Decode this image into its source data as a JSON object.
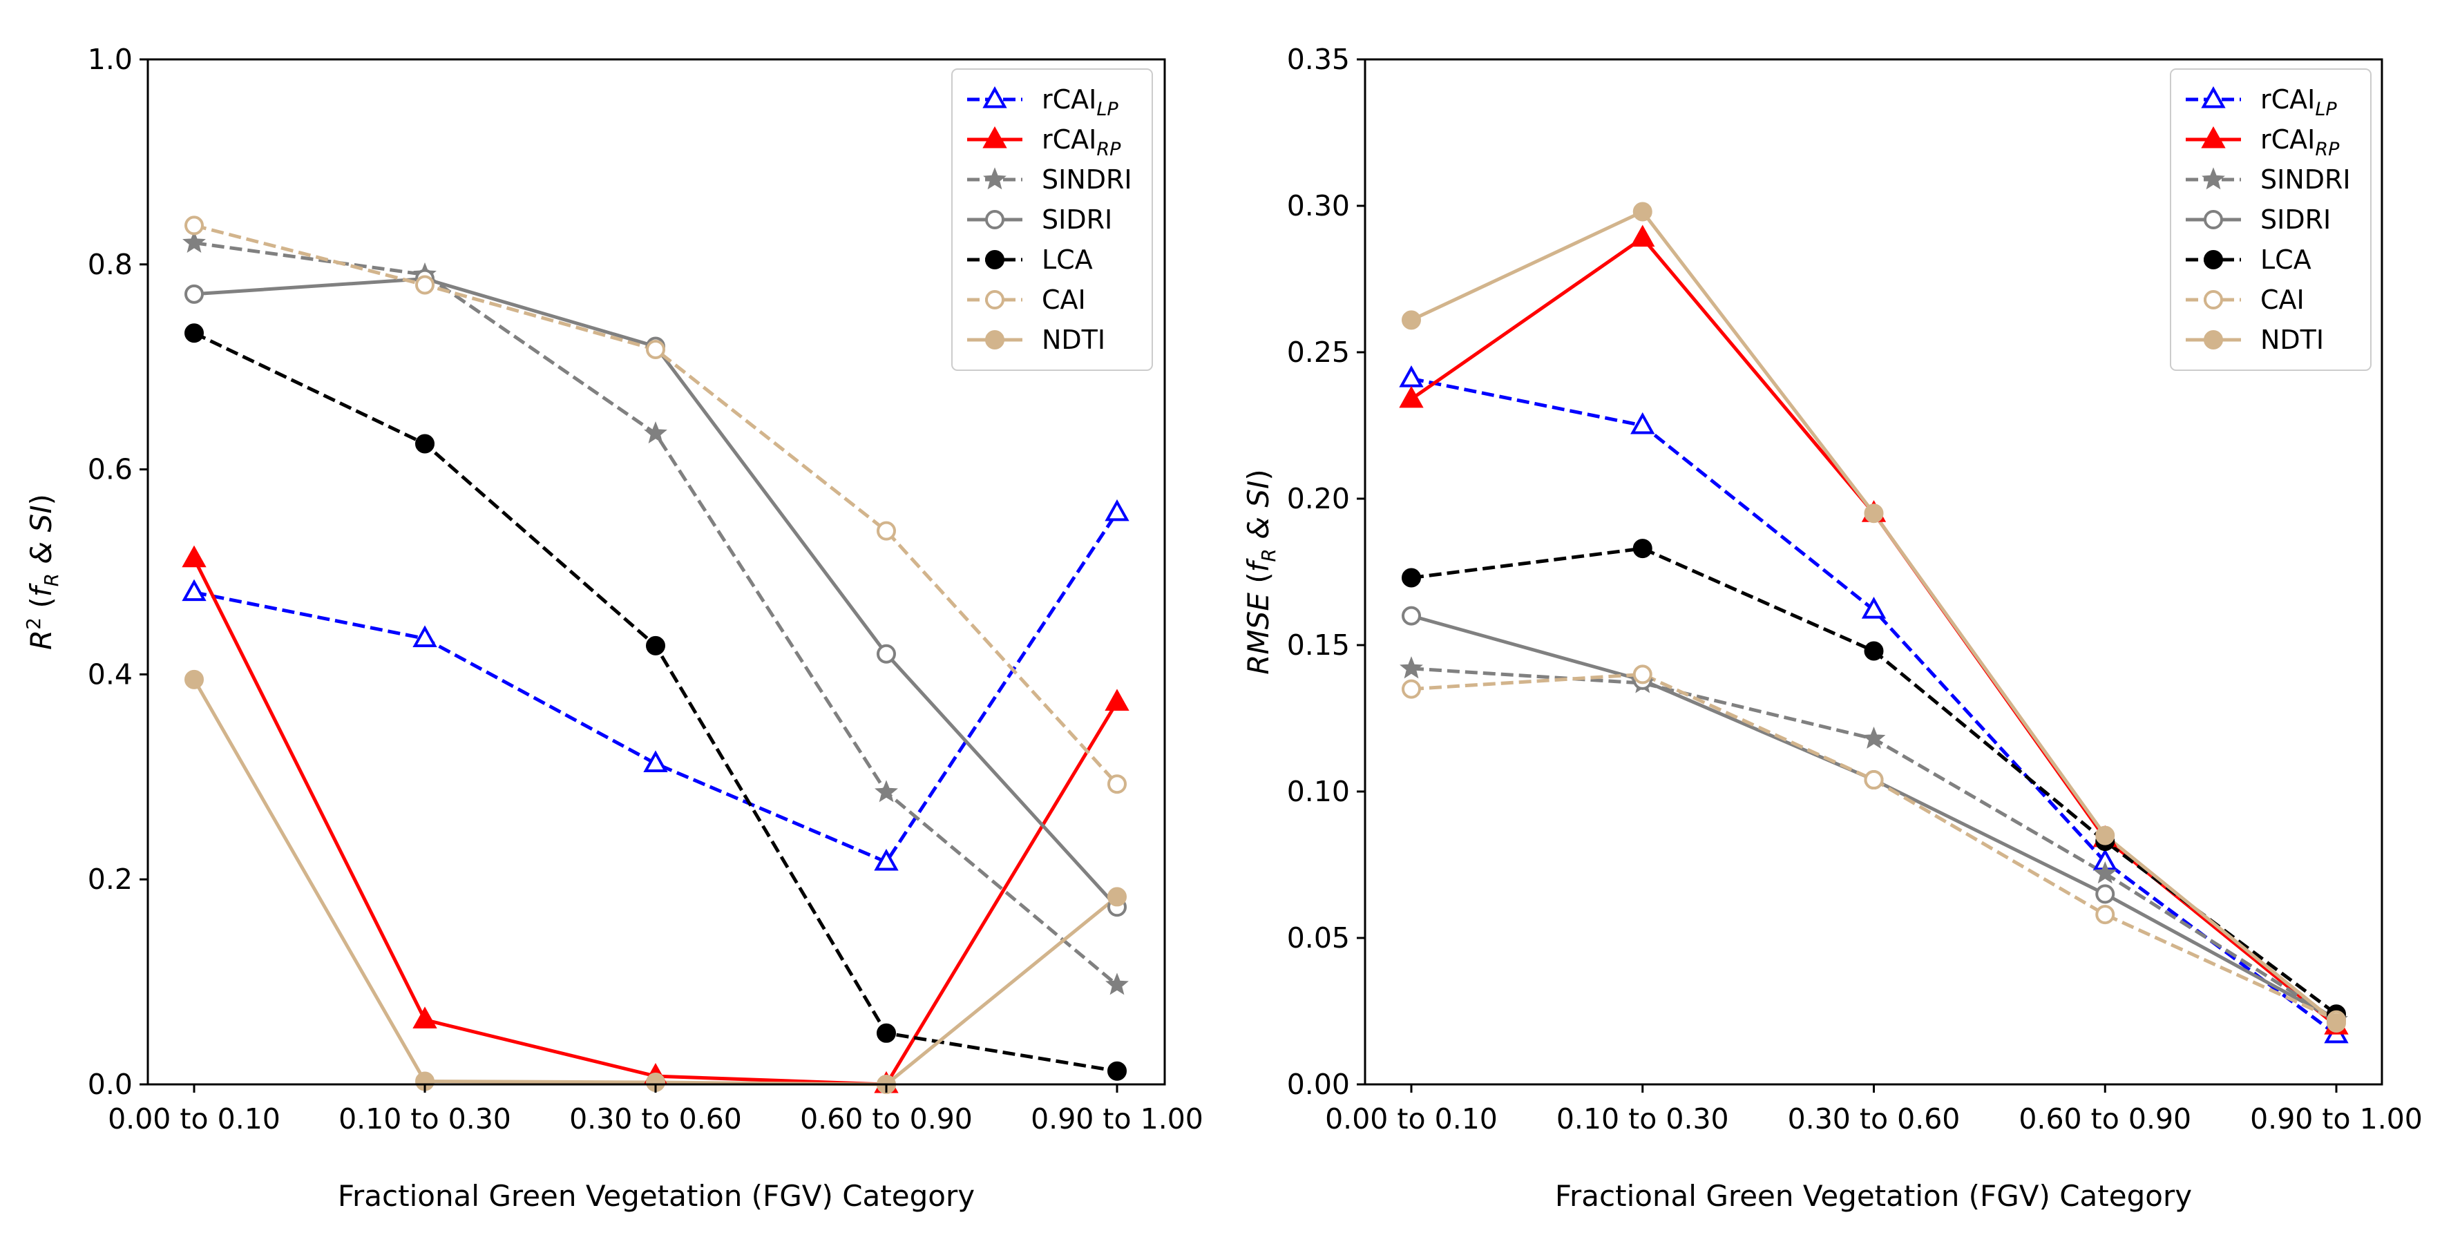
{
  "chart_data": [
    {
      "type": "line",
      "title": "",
      "xlabel": "Fractional Green Vegetation (FGV) Category",
      "ylabel": {
        "main": "R",
        "sup": "2",
        "open": " (",
        "f": "f",
        "fsub": "R",
        "rest": " & SI",
        "close": ")"
      },
      "categories": [
        "0.00 to 0.10",
        "0.10 to 0.30",
        "0.30 to 0.60",
        "0.60 to 0.90",
        "0.90 to 1.00"
      ],
      "ylim": [
        0.0,
        1.0
      ],
      "yticks": [
        "0.0",
        "0.2",
        "0.4",
        "0.6",
        "0.8",
        "1.0"
      ],
      "ytick_values": [
        0.0,
        0.2,
        0.4,
        0.6,
        0.8,
        1.0
      ],
      "legend_position": "top-right",
      "series": [
        {
          "name": "rCAI",
          "sub": "LP",
          "color": "#0000ff",
          "dash": true,
          "marker": "triangle",
          "filled": false,
          "values": [
            0.48,
            0.435,
            0.313,
            0.217,
            0.558
          ]
        },
        {
          "name": "rCAI",
          "sub": "RP",
          "color": "#ff0000",
          "dash": false,
          "marker": "triangle",
          "filled": true,
          "values": [
            0.513,
            0.063,
            0.008,
            0.0,
            0.373
          ]
        },
        {
          "name": "SINDRI",
          "sub": "",
          "color": "#808080",
          "dash": true,
          "marker": "star",
          "filled": true,
          "values": [
            0.821,
            0.79,
            0.635,
            0.285,
            0.097
          ]
        },
        {
          "name": "SIDRI",
          "sub": "",
          "color": "#808080",
          "dash": false,
          "marker": "circle",
          "filled": false,
          "values": [
            0.771,
            0.786,
            0.72,
            0.42,
            0.173
          ]
        },
        {
          "name": "LCA",
          "sub": "",
          "color": "#000000",
          "dash": true,
          "marker": "circle",
          "filled": true,
          "values": [
            0.733,
            0.625,
            0.428,
            0.05,
            0.013
          ]
        },
        {
          "name": "CAI",
          "sub": "",
          "color": "#d2b48c",
          "dash": true,
          "marker": "circle",
          "filled": false,
          "values": [
            0.838,
            0.78,
            0.717,
            0.54,
            0.293
          ]
        },
        {
          "name": "NDTI",
          "sub": "",
          "color": "#d2b48c",
          "dash": false,
          "marker": "circle",
          "filled": true,
          "values": [
            0.395,
            0.003,
            0.002,
            0.0,
            0.183
          ]
        }
      ]
    },
    {
      "type": "line",
      "title": "",
      "xlabel": "Fractional Green Vegetation (FGV) Category",
      "ylabel": {
        "main": "RMSE",
        "sup": "",
        "open": " (",
        "f": "f",
        "fsub": "R",
        "rest": " & SI",
        "close": ")"
      },
      "categories": [
        "0.00 to 0.10",
        "0.10 to 0.30",
        "0.30 to 0.60",
        "0.60 to 0.90",
        "0.90 to 1.00"
      ],
      "ylim": [
        0.0,
        0.35
      ],
      "yticks": [
        "0.00",
        "0.05",
        "0.10",
        "0.15",
        "0.20",
        "0.25",
        "0.30",
        "0.35"
      ],
      "ytick_values": [
        0.0,
        0.05,
        0.1,
        0.15,
        0.2,
        0.25,
        0.3,
        0.35
      ],
      "legend_position": "top-right",
      "series": [
        {
          "name": "rCAI",
          "sub": "LP",
          "color": "#0000ff",
          "dash": true,
          "marker": "triangle",
          "filled": false,
          "values": [
            0.241,
            0.225,
            0.162,
            0.076,
            0.017
          ]
        },
        {
          "name": "rCAI",
          "sub": "RP",
          "color": "#ff0000",
          "dash": false,
          "marker": "triangle",
          "filled": true,
          "values": [
            0.234,
            0.289,
            0.195,
            0.084,
            0.02
          ]
        },
        {
          "name": "SINDRI",
          "sub": "",
          "color": "#808080",
          "dash": true,
          "marker": "star",
          "filled": true,
          "values": [
            0.142,
            0.137,
            0.118,
            0.072,
            0.022
          ]
        },
        {
          "name": "SIDRI",
          "sub": "",
          "color": "#808080",
          "dash": false,
          "marker": "circle",
          "filled": false,
          "values": [
            0.16,
            0.138,
            0.104,
            0.065,
            0.022
          ]
        },
        {
          "name": "LCA",
          "sub": "",
          "color": "#000000",
          "dash": true,
          "marker": "circle",
          "filled": true,
          "values": [
            0.173,
            0.183,
            0.148,
            0.083,
            0.024
          ]
        },
        {
          "name": "CAI",
          "sub": "",
          "color": "#d2b48c",
          "dash": true,
          "marker": "circle",
          "filled": false,
          "values": [
            0.135,
            0.14,
            0.104,
            0.058,
            0.022
          ]
        },
        {
          "name": "NDTI",
          "sub": "",
          "color": "#d2b48c",
          "dash": false,
          "marker": "circle",
          "filled": true,
          "values": [
            0.261,
            0.298,
            0.195,
            0.085,
            0.021
          ]
        }
      ]
    }
  ]
}
